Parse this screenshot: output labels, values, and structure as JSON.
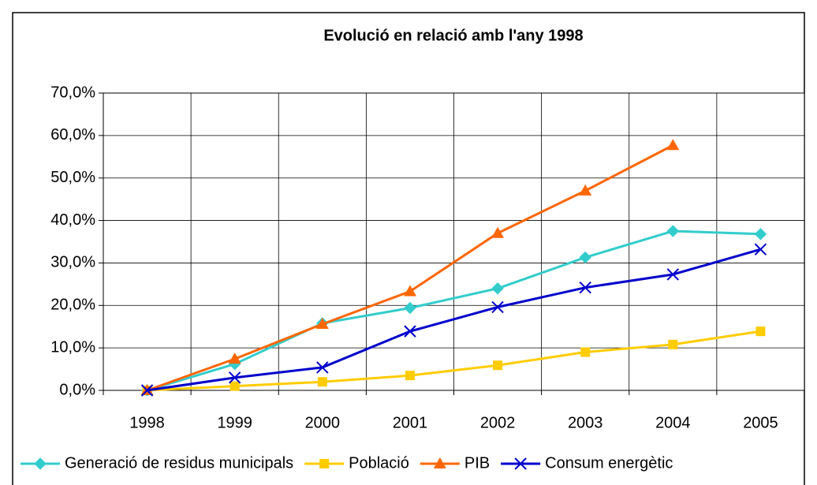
{
  "chart_data": {
    "type": "line",
    "title": "Evolució en relació amb l'any 1998",
    "categories": [
      "1998",
      "1999",
      "2000",
      "2001",
      "2002",
      "2003",
      "2004",
      "2005"
    ],
    "series": [
      {
        "name": "Generació de residus municipals",
        "color": "#33CCCC",
        "marker": "diamond",
        "values": [
          0,
          6.2,
          15.8,
          19.4,
          24,
          31.3,
          37.5,
          36.8
        ]
      },
      {
        "name": "Població",
        "color": "#FFCC00",
        "marker": "square",
        "values": [
          0,
          1,
          2,
          3.5,
          5.9,
          9,
          10.8,
          13.9
        ]
      },
      {
        "name": "PIB",
        "color": "#FF6600",
        "marker": "triangle",
        "values": [
          0,
          7.4,
          15.6,
          23.3,
          37,
          47,
          57.7,
          null
        ]
      },
      {
        "name": "Consum energètic",
        "color": "#0000CC",
        "marker": "x",
        "values": [
          0,
          3,
          5.4,
          13.9,
          19.6,
          24.2,
          27.3,
          33.2
        ]
      }
    ],
    "ylim": [
      0,
      70
    ],
    "yticks": [
      {
        "value": 0,
        "label": "0,0%"
      },
      {
        "value": 10,
        "label": "10,0%"
      },
      {
        "value": 20,
        "label": "20,0%"
      },
      {
        "value": 30,
        "label": "30,0%"
      },
      {
        "value": 40,
        "label": "40,0%"
      },
      {
        "value": 50,
        "label": "50,0%"
      },
      {
        "value": 60,
        "label": "60,0%"
      },
      {
        "value": 70,
        "label": "70,0%"
      }
    ],
    "grid": true,
    "legend": "bottom"
  }
}
